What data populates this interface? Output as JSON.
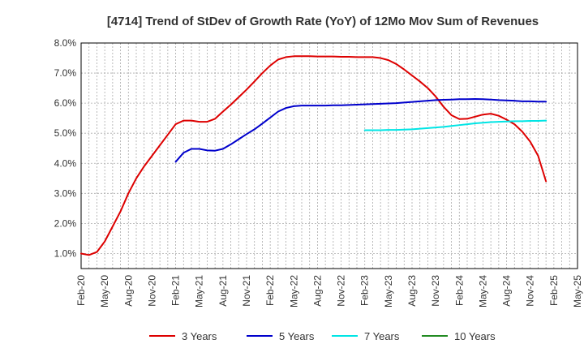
{
  "chart_data": {
    "type": "line",
    "title": "[4714]  Trend of StDev of Growth Rate (YoY) of 12Mo Mov Sum of Revenues",
    "xlabel": "",
    "ylabel": "",
    "ylim": [
      0.5,
      8.0
    ],
    "yticks": [
      "1.0%",
      "2.0%",
      "3.0%",
      "4.0%",
      "5.0%",
      "6.0%",
      "7.0%",
      "8.0%"
    ],
    "ytick_values": [
      1,
      2,
      3,
      4,
      5,
      6,
      7,
      8
    ],
    "xticks": [
      "Feb-20",
      "May-20",
      "Aug-20",
      "Nov-20",
      "Feb-21",
      "May-21",
      "Aug-21",
      "Nov-21",
      "Feb-22",
      "May-22",
      "Aug-22",
      "Nov-22",
      "Feb-23",
      "May-23",
      "Aug-23",
      "Nov-23",
      "Feb-24",
      "May-24",
      "Aug-24",
      "Nov-24",
      "Feb-25",
      "May-25"
    ],
    "x_range_months": [
      0,
      63
    ],
    "grid": true,
    "legend_position": "bottom",
    "series": [
      {
        "name": "3 Years",
        "color": "#dd0000",
        "start_month": 0,
        "values": [
          1.0,
          0.95,
          1.05,
          1.4,
          1.9,
          2.4,
          3.0,
          3.5,
          3.9,
          4.25,
          4.6,
          4.95,
          5.3,
          5.42,
          5.42,
          5.38,
          5.38,
          5.48,
          5.72,
          5.95,
          6.2,
          6.45,
          6.72,
          7.0,
          7.25,
          7.45,
          7.53,
          7.56,
          7.56,
          7.56,
          7.55,
          7.55,
          7.55,
          7.54,
          7.54,
          7.53,
          7.53,
          7.53,
          7.5,
          7.43,
          7.3,
          7.12,
          6.92,
          6.72,
          6.5,
          6.22,
          5.88,
          5.6,
          5.47,
          5.48,
          5.55,
          5.62,
          5.65,
          5.58,
          5.45,
          5.3,
          5.05,
          4.72,
          4.25,
          3.4
        ]
      },
      {
        "name": "5 Years",
        "color": "#0000cc",
        "start_month": 12,
        "values": [
          4.05,
          4.35,
          4.48,
          4.48,
          4.43,
          4.42,
          4.48,
          4.63,
          4.8,
          4.97,
          5.13,
          5.32,
          5.52,
          5.72,
          5.84,
          5.9,
          5.92,
          5.92,
          5.92,
          5.92,
          5.93,
          5.93,
          5.94,
          5.95,
          5.96,
          5.97,
          5.98,
          5.99,
          6.0,
          6.02,
          6.04,
          6.06,
          6.08,
          6.1,
          6.11,
          6.12,
          6.13,
          6.13,
          6.14,
          6.13,
          6.12,
          6.1,
          6.09,
          6.08,
          6.06,
          6.06,
          6.05,
          6.05
        ]
      },
      {
        "name": "7 Years",
        "color": "#00e5e5",
        "start_month": 36,
        "values": [
          5.1,
          5.1,
          5.1,
          5.11,
          5.11,
          5.12,
          5.13,
          5.15,
          5.17,
          5.19,
          5.21,
          5.24,
          5.27,
          5.3,
          5.33,
          5.35,
          5.37,
          5.38,
          5.39,
          5.4,
          5.4,
          5.41,
          5.41,
          5.42
        ]
      },
      {
        "name": "10 Years",
        "color": "#228b22",
        "start_month": 0,
        "values": []
      }
    ]
  }
}
